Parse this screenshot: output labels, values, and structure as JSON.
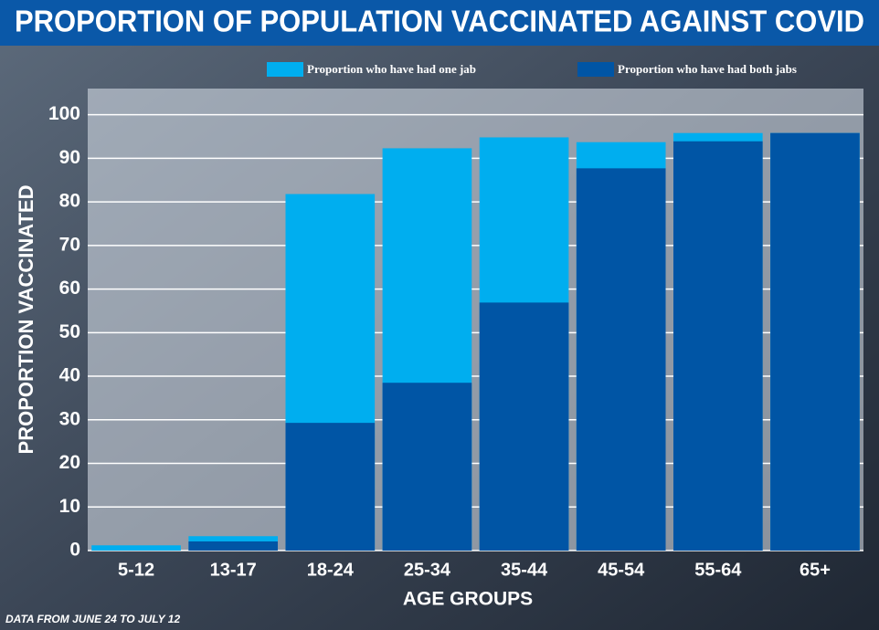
{
  "chart_data": {
    "type": "bar",
    "title": "PROPORTION OF POPULATION VACCINATED AGAINST COVID",
    "x_label": "AGE GROUPS",
    "y_label": "PROPORTION VACCINATED",
    "note": "DATA FROM JUNE 24 TO JULY 12",
    "categories": [
      "5-12",
      "13-17",
      "18-24",
      "25-34",
      "35-44",
      "45-54",
      "55-64",
      "65+"
    ],
    "series": [
      {
        "name": "Proportion who have had one jab",
        "color": "#00aeef",
        "values": [
          1.2,
          3.3,
          81.8,
          92.3,
          94.8,
          93.7,
          95.8,
          95.8
        ]
      },
      {
        "name": "Proportion who have had both jabs",
        "color": "#0055a5",
        "values": [
          0,
          2.1,
          29.3,
          38.5,
          56.9,
          87.7,
          93.9,
          95.8
        ]
      }
    ],
    "ylim": [
      0,
      106
    ],
    "yticks": [
      0,
      10,
      20,
      30,
      40,
      50,
      60,
      70,
      80,
      90,
      100
    ],
    "grid": true
  }
}
